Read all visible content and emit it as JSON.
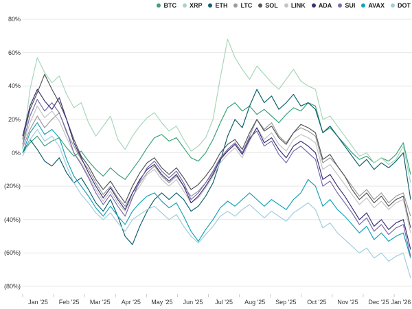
{
  "chart_data": {
    "type": "line",
    "title": "",
    "xlabel": "",
    "ylabel": "",
    "grid": true,
    "legend_position": "top-right",
    "ylim": [
      -80,
      80
    ],
    "y_tick_values": [
      80,
      60,
      40,
      20,
      0,
      -20,
      -40,
      -60,
      -80
    ],
    "y_tick_labels": [
      "80%",
      "60%",
      "40%",
      "20%",
      "0%",
      "(20%)",
      "(40%)",
      "(60%)",
      "(80%)"
    ],
    "x_tick_labels": [
      "Jan '25",
      "Feb '25",
      "Mar '25",
      "Apr '25",
      "May '25",
      "Jun '25",
      "Jul '25",
      "Aug '25",
      "Sep '25",
      "Oct '25",
      "Nov '25",
      "Dec '25",
      "Jan '26"
    ],
    "x_unit": "weekly samples, Jan 2025 through mid Jan 2026",
    "series": [
      {
        "name": "BTC",
        "color": "#3ba27a",
        "values": [
          0,
          6,
          10,
          4,
          7,
          9,
          3,
          -2,
          1,
          -5,
          -10,
          -14,
          -9,
          -13,
          -16,
          -10,
          -4,
          3,
          9,
          11,
          7,
          9,
          3,
          -3,
          -5,
          0,
          8,
          18,
          27,
          30,
          25,
          28,
          23,
          26,
          22,
          18,
          23,
          27,
          25,
          30,
          28,
          12,
          15,
          10,
          5,
          0,
          -4,
          -2,
          -6,
          -3,
          -5,
          -1,
          6,
          -13
        ]
      },
      {
        "name": "XRP",
        "color": "#a8d6ba",
        "values": [
          2,
          38,
          57,
          48,
          42,
          46,
          35,
          27,
          30,
          18,
          10,
          16,
          22,
          8,
          2,
          10,
          16,
          21,
          24,
          18,
          13,
          16,
          8,
          1,
          4,
          9,
          20,
          45,
          68,
          57,
          50,
          44,
          52,
          47,
          42,
          38,
          44,
          50,
          43,
          40,
          38,
          20,
          22,
          16,
          10,
          4,
          -2,
          0,
          -6,
          -3,
          -7,
          -4,
          4,
          -18
        ]
      },
      {
        "name": "ETH",
        "color": "#0f6270",
        "values": [
          0,
          8,
          2,
          -5,
          -8,
          -3,
          -12,
          -18,
          -15,
          -22,
          -30,
          -35,
          -28,
          -38,
          -50,
          -55,
          -44,
          -35,
          -28,
          -24,
          -28,
          -24,
          -28,
          -35,
          -32,
          -26,
          -18,
          -5,
          10,
          20,
          15,
          28,
          38,
          30,
          34,
          26,
          30,
          35,
          28,
          30,
          26,
          12,
          16,
          10,
          4,
          -2,
          -8,
          -4,
          -10,
          -6,
          -9,
          -5,
          0,
          -28
        ]
      },
      {
        "name": "LTC",
        "color": "#9b9b9b",
        "values": [
          3,
          14,
          22,
          15,
          20,
          24,
          12,
          4,
          -4,
          -10,
          -18,
          -25,
          -20,
          -27,
          -32,
          -24,
          -18,
          -12,
          -8,
          -14,
          -18,
          -14,
          -20,
          -26,
          -23,
          -18,
          -12,
          -4,
          2,
          6,
          0,
          10,
          20,
          14,
          18,
          10,
          6,
          12,
          15,
          13,
          10,
          -6,
          -3,
          -8,
          -14,
          -20,
          -26,
          -22,
          -28,
          -24,
          -30,
          -26,
          -24,
          -38
        ]
      },
      {
        "name": "SOL",
        "color": "#54565a",
        "values": [
          8,
          26,
          36,
          47,
          38,
          30,
          20,
          8,
          -2,
          -8,
          -16,
          -22,
          -17,
          -24,
          -30,
          -20,
          -12,
          -6,
          -3,
          -9,
          -13,
          -9,
          -15,
          -22,
          -19,
          -14,
          -8,
          0,
          5,
          8,
          2,
          12,
          20,
          13,
          16,
          9,
          5,
          12,
          17,
          15,
          12,
          -4,
          -1,
          -8,
          -14,
          -22,
          -28,
          -24,
          -30,
          -26,
          -32,
          -28,
          -26,
          -45
        ]
      },
      {
        "name": "LINK",
        "color": "#c3c3c3",
        "values": [
          4,
          18,
          28,
          21,
          25,
          19,
          9,
          0,
          -6,
          -14,
          -22,
          -29,
          -23,
          -30,
          -35,
          -26,
          -20,
          -13,
          -10,
          -16,
          -20,
          -16,
          -23,
          -30,
          -27,
          -21,
          -14,
          -6,
          -1,
          3,
          -3,
          7,
          15,
          8,
          12,
          5,
          1,
          8,
          11,
          9,
          6,
          -10,
          -7,
          -13,
          -19,
          -25,
          -31,
          -27,
          -33,
          -29,
          -34,
          -30,
          -28,
          -48
        ]
      },
      {
        "name": "ADA",
        "color": "#3a3173",
        "values": [
          10,
          28,
          38,
          31,
          26,
          33,
          20,
          6,
          -3,
          -12,
          -20,
          -27,
          -21,
          -28,
          -34,
          -24,
          -16,
          -10,
          -7,
          -13,
          -17,
          -13,
          -20,
          -30,
          -26,
          -20,
          -13,
          -4,
          1,
          5,
          -1,
          8,
          15,
          6,
          9,
          2,
          -3,
          4,
          7,
          4,
          0,
          -16,
          -13,
          -20,
          -26,
          -33,
          -40,
          -36,
          -44,
          -40,
          -46,
          -42,
          -40,
          -58
        ]
      },
      {
        "name": "SUI",
        "color": "#7b6aab",
        "values": [
          5,
          22,
          32,
          25,
          30,
          24,
          13,
          0,
          -7,
          -15,
          -24,
          -31,
          -25,
          -32,
          -38,
          -27,
          -17,
          -9,
          -5,
          -11,
          -15,
          -11,
          -18,
          -28,
          -24,
          -18,
          -11,
          -3,
          2,
          6,
          0,
          9,
          13,
          4,
          7,
          -1,
          -6,
          1,
          4,
          0,
          -4,
          -20,
          -17,
          -24,
          -30,
          -36,
          -43,
          -39,
          -47,
          -43,
          -49,
          -45,
          -43,
          -62
        ]
      },
      {
        "name": "AVAX",
        "color": "#17a2b8",
        "values": [
          0,
          12,
          18,
          11,
          14,
          9,
          -4,
          -14,
          -20,
          -26,
          -33,
          -38,
          -32,
          -38,
          -43,
          -35,
          -30,
          -26,
          -24,
          -29,
          -33,
          -30,
          -38,
          -47,
          -53,
          -46,
          -40,
          -33,
          -29,
          -32,
          -28,
          -24,
          -28,
          -32,
          -28,
          -31,
          -34,
          -28,
          -24,
          -16,
          -20,
          -32,
          -28,
          -34,
          -38,
          -43,
          -48,
          -44,
          -52,
          -48,
          -53,
          -50,
          -48,
          -63
        ]
      },
      {
        "name": "DOT",
        "color": "#a2cddc",
        "values": [
          -2,
          8,
          14,
          7,
          10,
          4,
          -8,
          -18,
          -25,
          -30,
          -36,
          -40,
          -36,
          -42,
          -47,
          -40,
          -37,
          -34,
          -32,
          -36,
          -40,
          -37,
          -44,
          -50,
          -54,
          -49,
          -44,
          -38,
          -35,
          -38,
          -34,
          -31,
          -35,
          -39,
          -35,
          -38,
          -41,
          -36,
          -33,
          -30,
          -34,
          -45,
          -42,
          -48,
          -52,
          -56,
          -60,
          -57,
          -63,
          -60,
          -65,
          -62,
          -60,
          -75
        ]
      }
    ]
  }
}
